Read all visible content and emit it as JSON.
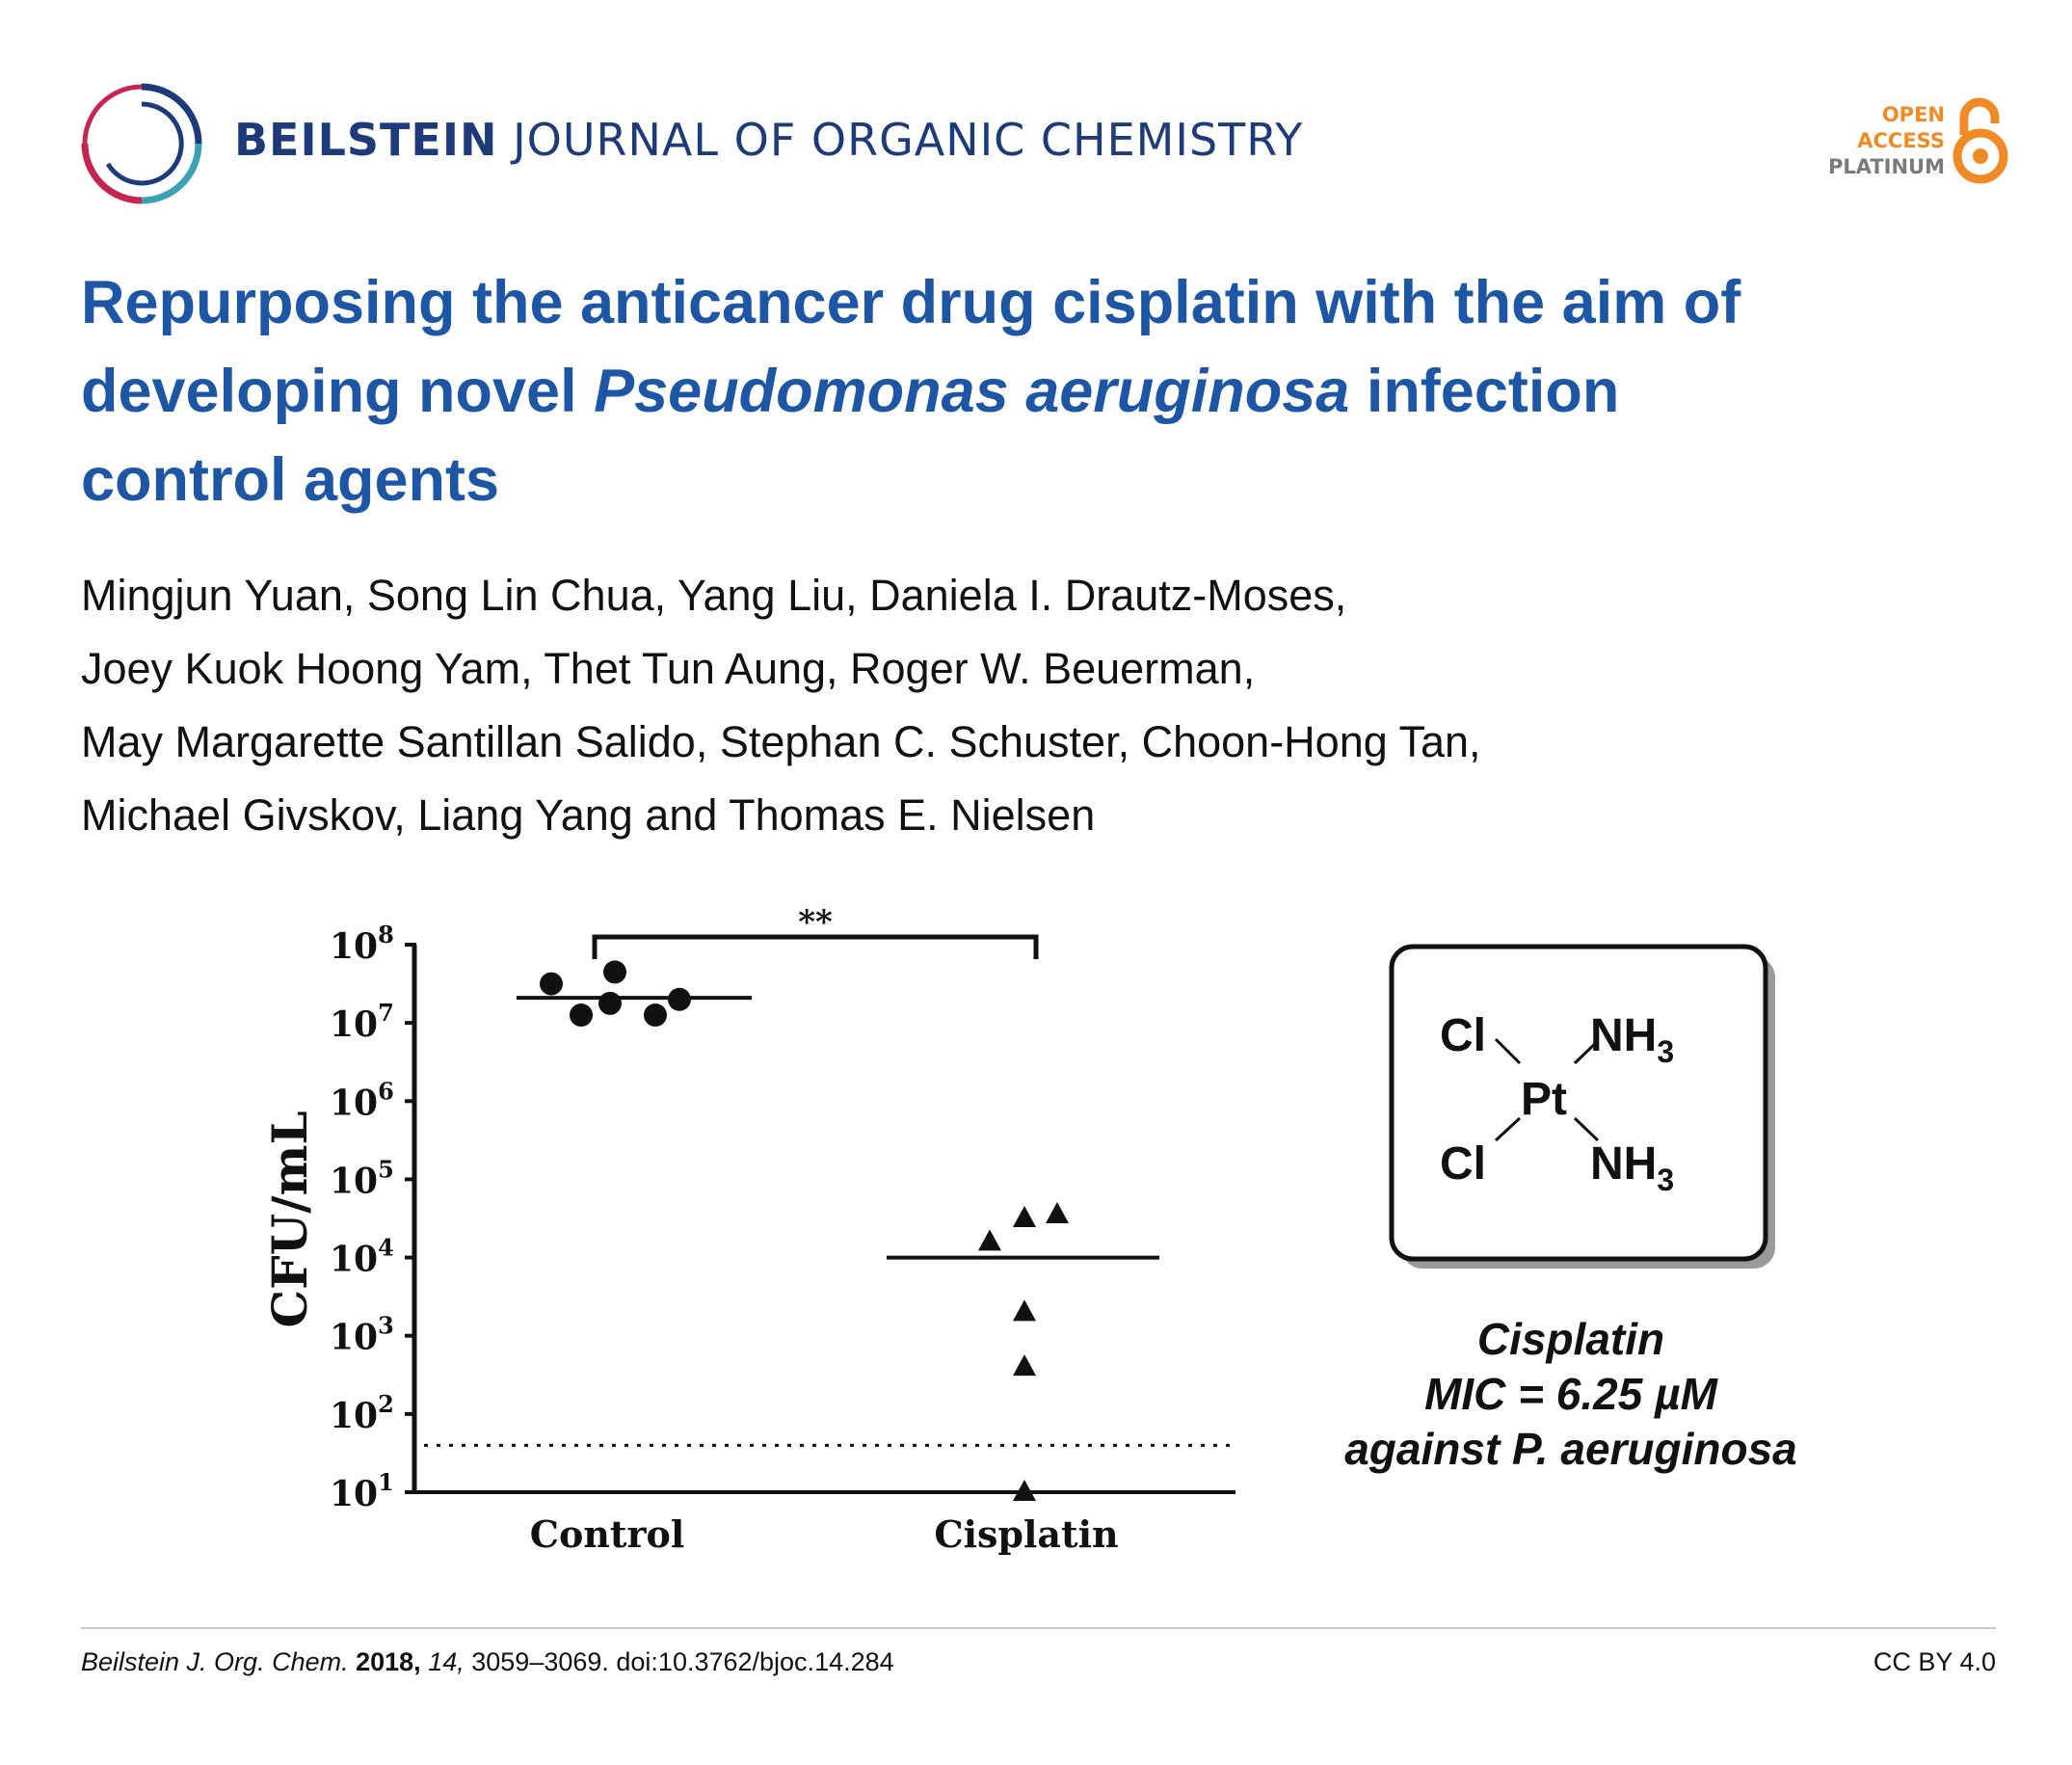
{
  "header": {
    "journal_bold": "BEILSTEIN",
    "journal_rest": " JOURNAL OF ORGANIC CHEMISTRY",
    "badge": [
      "OPEN",
      "ACCESS",
      "PLATINUM"
    ]
  },
  "article": {
    "title_line1": "Repurposing the anticancer drug cisplatin with the aim of",
    "title_line2_a": "developing novel ",
    "title_line2_italic": "Pseudomonas aeruginosa",
    "title_line2_b": " infection",
    "title_line3": "control agents",
    "authors": [
      "Mingjun Yuan, Song Lin Chua, Yang Liu, Daniela I. Drautz-Moses,",
      "Joey Kuok Hoong Yam, Thet Tun Aung, Roger W. Beuerman,",
      "May Margarette Santillan Salido, Stephan C. Schuster, Choon-Hong Tan,",
      "Michael Givskov, Liang Yang and Thomas E. Nielsen"
    ]
  },
  "chart_data": {
    "type": "scatter",
    "ylabel": "CFU/mL",
    "yscale": "log10",
    "ylim_exponent": [
      1,
      8
    ],
    "yticks": [
      "10",
      "10",
      "10",
      "10",
      "10",
      "10",
      "10",
      "10"
    ],
    "ytick_exponents": [
      "8",
      "7",
      "6",
      "5",
      "4",
      "3",
      "2",
      "1"
    ],
    "categories": [
      "Control",
      "Cisplatin"
    ],
    "significance": "**",
    "detection_limit_log10": 1.6,
    "series": [
      {
        "name": "Control",
        "marker": "circle",
        "log10_values": [
          7.5,
          7.25,
          7.1,
          7.1,
          7.3,
          7.65
        ],
        "median_log10": 7.32
      },
      {
        "name": "Cisplatin",
        "marker": "triangle",
        "log10_values": [
          4.5,
          4.2,
          4.55,
          3.3,
          2.6,
          1.0
        ],
        "median_log10": 4.0
      }
    ]
  },
  "compound": {
    "cl_top": "Cl",
    "cl_bottom": "Cl",
    "nh3": "NH",
    "nh3_sub": "3",
    "pt": "Pt",
    "name": "Cisplatin",
    "mic": "MIC = 6.25 µM",
    "target": "against P. aeruginosa"
  },
  "footer": {
    "journal_abbr": "Beilstein J. Org. Chem.",
    "year": "2018,",
    "volume": "14,",
    "pages_doi": " 3059–3069. doi:10.3762/bjoc.14.284",
    "license": "CC BY 4.0"
  },
  "colors": {
    "brand_navy": "#1d3a7a",
    "title_blue": "#1d56a5",
    "oa_orange": "#f08a24"
  }
}
